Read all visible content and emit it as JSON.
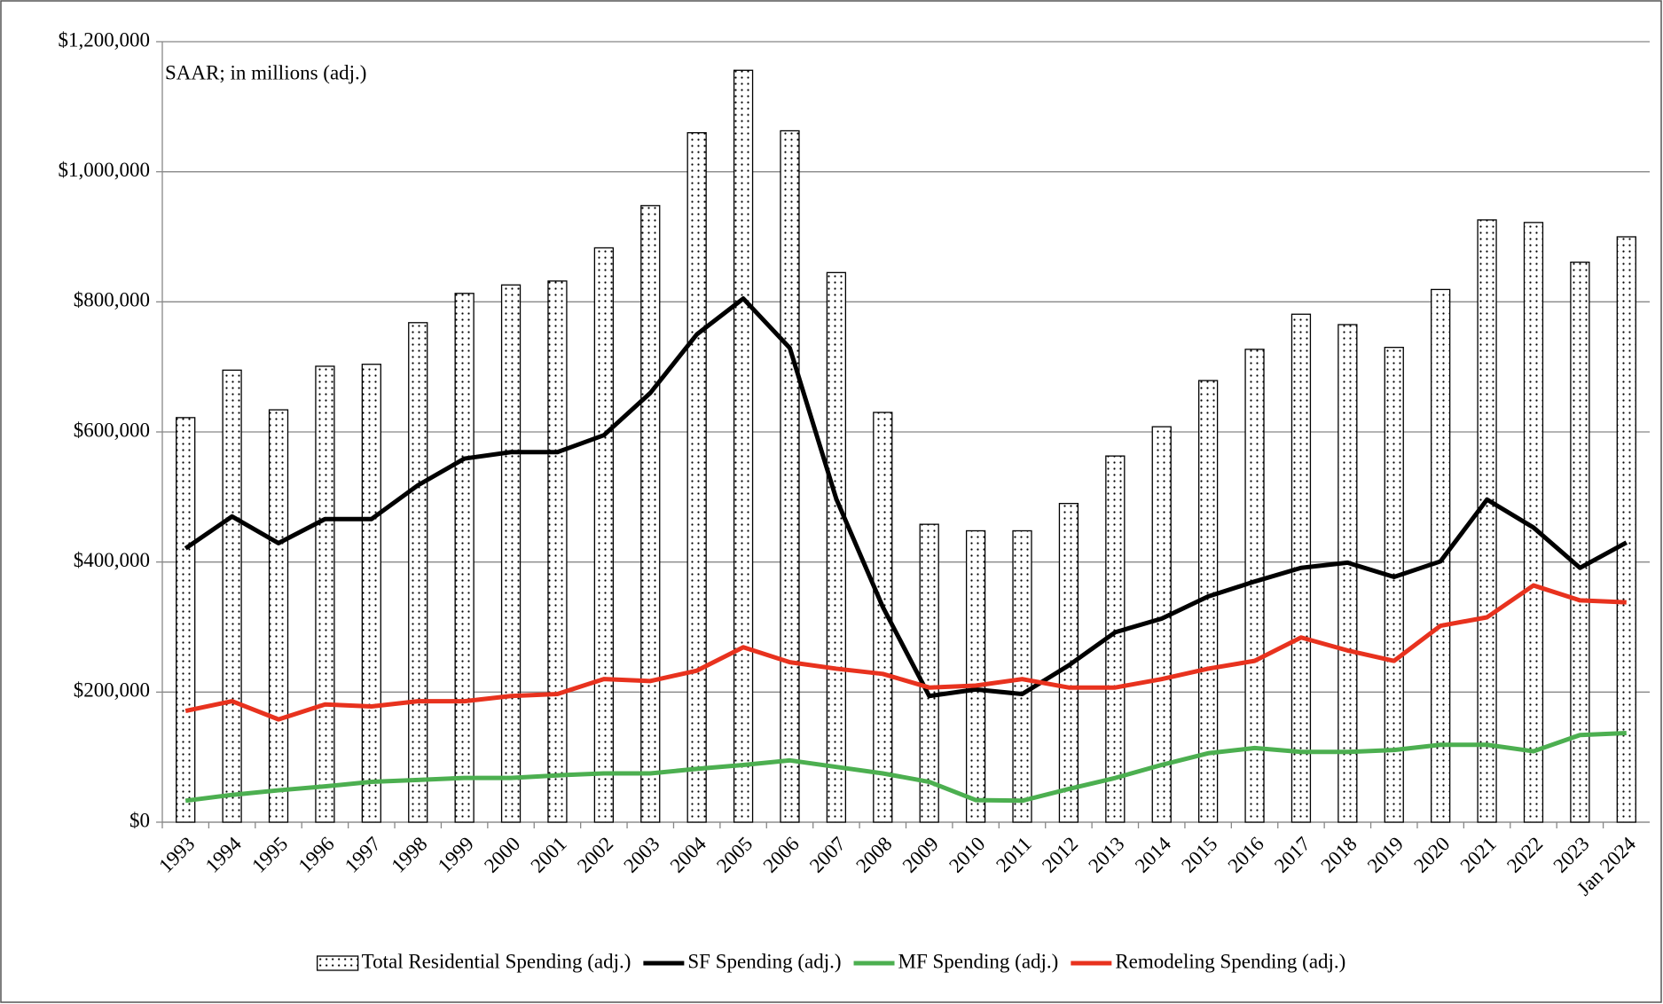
{
  "chart_data": {
    "type": "combo",
    "annotation": "SAAR; in millions (adj.)",
    "categories": [
      "1993",
      "1994",
      "1995",
      "1996",
      "1997",
      "1998",
      "1999",
      "2000",
      "2001",
      "2002",
      "2003",
      "2004",
      "2005",
      "2006",
      "2007",
      "2008",
      "2009",
      "2010",
      "2011",
      "2012",
      "2013",
      "2014",
      "2015",
      "2016",
      "2017",
      "2018",
      "2019",
      "2020",
      "2021",
      "2022",
      "2023",
      "Jan 2024"
    ],
    "series": [
      {
        "name": "Total Residential Spending (adj.)",
        "type": "bar",
        "color": "#000000",
        "values": [
          622000,
          695000,
          634000,
          701000,
          704000,
          768000,
          813000,
          826000,
          832000,
          883000,
          948000,
          1060000,
          1156000,
          1063000,
          845000,
          630000,
          458000,
          448000,
          448000,
          490000,
          563000,
          608000,
          679000,
          727000,
          781000,
          765000,
          730000,
          819000,
          926000,
          922000,
          861000,
          900000
        ]
      },
      {
        "name": "SF Spending (adj.)",
        "type": "line",
        "color": "#000000",
        "values": [
          421000,
          470000,
          429000,
          466000,
          466000,
          518000,
          559000,
          569000,
          569000,
          595000,
          660000,
          750000,
          805000,
          729000,
          497000,
          331000,
          194000,
          204000,
          197000,
          241000,
          292000,
          313000,
          347000,
          370000,
          391000,
          399000,
          377000,
          401000,
          496000,
          453000,
          391000,
          430000
        ]
      },
      {
        "name": "MF Spending (adj.)",
        "type": "line",
        "color": "#4caf50",
        "values": [
          33000,
          42000,
          49000,
          55000,
          62000,
          65000,
          68000,
          68000,
          72000,
          75000,
          75000,
          82000,
          88000,
          95000,
          85000,
          75000,
          62000,
          34000,
          33000,
          51000,
          68000,
          88000,
          106000,
          114000,
          108000,
          108000,
          111000,
          119000,
          119000,
          109000,
          134000,
          137000
        ]
      },
      {
        "name": "Remodeling Spending (adj.)",
        "type": "line",
        "color": "#e8321e",
        "values": [
          171000,
          186000,
          158000,
          181000,
          178000,
          186000,
          186000,
          194000,
          197000,
          220000,
          217000,
          233000,
          269000,
          246000,
          236000,
          228000,
          207000,
          210000,
          220000,
          207000,
          207000,
          220000,
          236000,
          248000,
          284000,
          264000,
          248000,
          302000,
          315000,
          364000,
          341000,
          338000
        ]
      }
    ],
    "ylim": [
      0,
      1200000
    ],
    "yticks": [
      {
        "value": 0,
        "label": "$0"
      },
      {
        "value": 200000,
        "label": "$200,000"
      },
      {
        "value": 400000,
        "label": "$400,000"
      },
      {
        "value": 600000,
        "label": "$600,000"
      },
      {
        "value": 800000,
        "label": "$800,000"
      },
      {
        "value": 1000000,
        "label": "$1,000,000"
      },
      {
        "value": 1200000,
        "label": "$1,200,000"
      }
    ],
    "grid": true,
    "legend": "bottom"
  }
}
